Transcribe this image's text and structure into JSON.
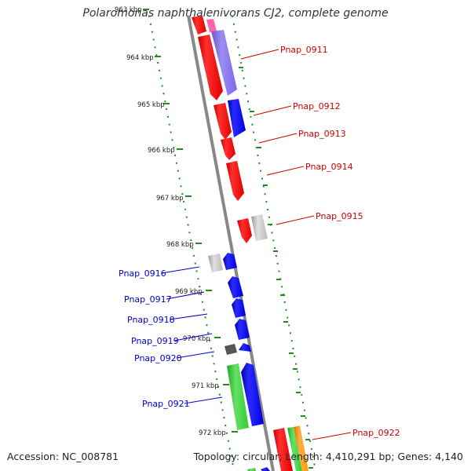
{
  "title": "Polaromonas naphthalenivorans CJ2, complete genome",
  "accession": "Accession: NC_008781",
  "topology": "Topology: circular; Length: 4,410,291 bp; Genes: 4,140",
  "kbp_ticks": [
    {
      "label": "963 kbp"
    },
    {
      "label": "964 kbp"
    },
    {
      "label": "965 kbp"
    },
    {
      "label": "966 kbp"
    },
    {
      "label": "967 kbp"
    },
    {
      "label": "968 kbp"
    },
    {
      "label": "969 kbp"
    },
    {
      "label": "970 kbp"
    },
    {
      "label": "971 kbp"
    },
    {
      "label": "972 kbp"
    }
  ],
  "gene_labels_right": [
    "Pnap_0911",
    "Pnap_0912",
    "Pnap_0913",
    "Pnap_0914",
    "Pnap_0915",
    "Pnap_0922"
  ],
  "gene_labels_left": [
    "Pnap_0916",
    "Pnap_0917",
    "Pnap_0918",
    "Pnap_0919",
    "Pnap_0920",
    "Pnap_0921"
  ],
  "colors": {
    "label_right": "#cc0000",
    "label_left": "#0000cc",
    "tick_green": "#228B22",
    "backbone": "#888888",
    "red": "#ff0000",
    "blue": "#0000ff",
    "purple": "#7b68ee",
    "green": "#33cc33",
    "grey": "#bbbbbb",
    "darkgrey": "#555555",
    "orange": "#ff9900",
    "pink": "#ff66aa"
  }
}
